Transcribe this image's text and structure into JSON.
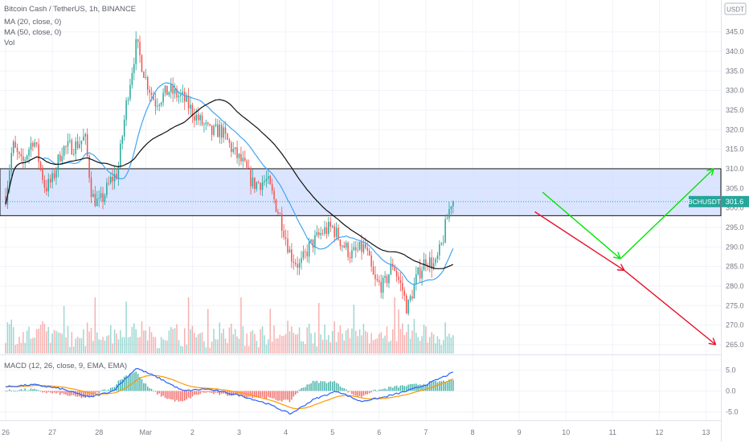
{
  "header": {
    "symbol_title": "Bitcoin Cash / TetherUS, 1h, BINANCE",
    "indicators": [
      "MA (20, close, 0)",
      "MA (50, close, 0)",
      "Vol"
    ],
    "currency_badge": "USDT"
  },
  "macd": {
    "label": "MACD (12, 26, close, 9, EMA, EMA)"
  },
  "price_badge": {
    "symbol": "BCHUSDT",
    "price": "301.6"
  },
  "colors": {
    "up": "#26a69a",
    "down": "#ef5350",
    "ma20": "#42a5f5",
    "ma50": "#000000",
    "zone_fill": "#cfdcff",
    "arrow_green": "#00e600",
    "arrow_red": "#e8102a",
    "macd_line": "#2962ff",
    "signal_line": "#ff9800"
  },
  "chart_data": {
    "type": "candlestick",
    "symbol": "BCHUSDT",
    "timeframe": "1h",
    "exchange": "BINANCE",
    "x_ticks": [
      "26",
      "27",
      "28",
      "Mar",
      "2",
      "3",
      "4",
      "5",
      "6",
      "7",
      "8",
      "9",
      "10",
      "11",
      "12",
      "13"
    ],
    "y_ticks": [
      345.0,
      340.0,
      335.0,
      330.0,
      325.0,
      320.0,
      315.0,
      310.0,
      305.0,
      300.0,
      295.0,
      290.0,
      285.0,
      280.0,
      275.0,
      270.0,
      265.0
    ],
    "ylim": [
      262.5,
      348
    ],
    "last_price": 301.6,
    "resistance_zone": [
      298,
      310
    ],
    "price_path": [
      [
        0,
        303
      ],
      [
        0.15,
        316
      ],
      [
        0.35,
        311
      ],
      [
        0.6,
        318
      ],
      [
        0.85,
        305
      ],
      [
        1.0,
        307
      ],
      [
        1.2,
        315
      ],
      [
        1.5,
        316
      ],
      [
        1.7,
        318
      ],
      [
        1.85,
        303
      ],
      [
        2.0,
        301
      ],
      [
        2.1,
        303
      ],
      [
        2.25,
        307
      ],
      [
        2.4,
        309
      ],
      [
        2.6,
        328
      ],
      [
        2.8,
        342
      ],
      [
        3.0,
        333
      ],
      [
        3.2,
        327
      ],
      [
        3.5,
        330
      ],
      [
        3.8,
        328
      ],
      [
        4.1,
        323
      ],
      [
        4.4,
        319
      ],
      [
        4.6,
        320
      ],
      [
        4.9,
        314
      ],
      [
        5.1,
        311
      ],
      [
        5.3,
        306
      ],
      [
        5.6,
        307
      ],
      [
        5.9,
        297
      ],
      [
        6.1,
        288
      ],
      [
        6.3,
        285
      ],
      [
        6.5,
        290
      ],
      [
        6.8,
        294
      ],
      [
        7.0,
        295
      ],
      [
        7.2,
        291
      ],
      [
        7.4,
        288
      ],
      [
        7.7,
        290
      ],
      [
        7.9,
        281
      ],
      [
        8.1,
        280
      ],
      [
        8.3,
        286
      ],
      [
        8.4,
        282
      ],
      [
        8.5,
        279
      ],
      [
        8.6,
        274
      ],
      [
        8.8,
        282
      ],
      [
        9.0,
        287
      ],
      [
        9.2,
        285
      ],
      [
        9.35,
        291
      ],
      [
        9.45,
        297
      ],
      [
        9.55,
        302
      ],
      [
        9.6,
        301.6
      ]
    ],
    "projections": [
      {
        "name": "green-scenario",
        "points": [
          [
            "2021-03-09T12",
            304
          ],
          [
            "2021-03-11T04",
            287
          ],
          [
            "2021-03-13T04",
            310
          ]
        ]
      },
      {
        "name": "red-scenario",
        "points": [
          [
            "2021-03-09T08",
            299
          ],
          [
            "2021-03-11T06",
            284
          ],
          [
            "2021-03-13T05",
            265
          ]
        ]
      }
    ],
    "volume": "hourly bars along the bottom of the price pane",
    "macd_yticks": [
      5.0,
      0.0,
      -5.0
    ],
    "macd_ylim": [
      -7,
      7
    ],
    "macd_path": [
      [
        0,
        1
      ],
      [
        0.6,
        1.5
      ],
      [
        1.2,
        0.5
      ],
      [
        1.8,
        -1.5
      ],
      [
        2.3,
        0
      ],
      [
        2.8,
        5.5
      ],
      [
        3.3,
        3
      ],
      [
        3.8,
        0
      ],
      [
        4.3,
        0.5
      ],
      [
        5.0,
        -1
      ],
      [
        5.6,
        -3
      ],
      [
        6.1,
        -5.5
      ],
      [
        6.6,
        -2
      ],
      [
        7.1,
        0
      ],
      [
        7.6,
        -2.5
      ],
      [
        8.1,
        -1.5
      ],
      [
        8.6,
        0
      ],
      [
        9.0,
        1.5
      ],
      [
        9.3,
        3
      ],
      [
        9.6,
        4.5
      ]
    ]
  }
}
